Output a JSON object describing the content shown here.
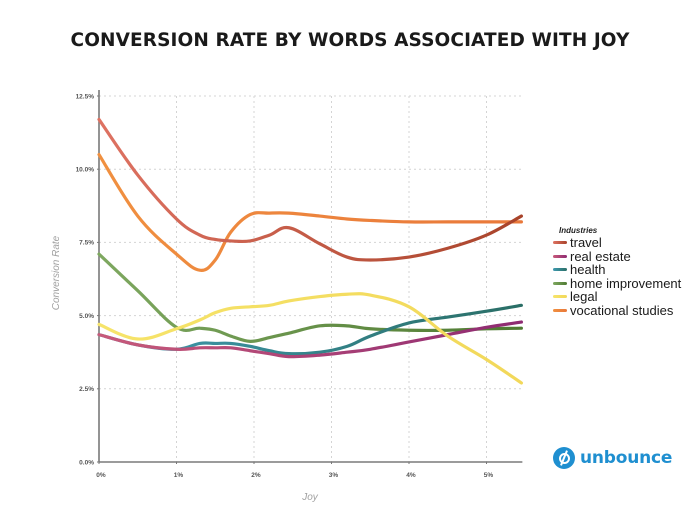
{
  "chart_data": {
    "type": "line",
    "title": "CONVERSION RATE BY WORDS ASSOCIATED WITH JOY",
    "xlabel": "Joy",
    "ylabel": "Conversion Rate",
    "xlim": [
      0,
      5.45
    ],
    "ylim": [
      0,
      12.5
    ],
    "x_ticks": [
      0,
      1,
      2,
      3,
      4,
      5
    ],
    "x_tick_labels": [
      "0%",
      "1%",
      "2%",
      "3%",
      "4%",
      "5%"
    ],
    "y_ticks": [
      0,
      2.5,
      5,
      7.5,
      10,
      12.5
    ],
    "y_tick_labels": [
      "0.0%",
      "2.5%",
      "5.0%",
      "7.5%",
      "10.0%",
      "12.5%"
    ],
    "grid": true,
    "legend": {
      "title": "Industries",
      "position": "right"
    },
    "x": [
      0,
      0.5,
      1,
      1.3,
      1.5,
      1.7,
      1.95,
      2.2,
      2.45,
      2.85,
      3.2,
      3.5,
      4,
      4.5,
      5,
      5.45
    ],
    "series": [
      {
        "name": "travel",
        "color": "#a8432a",
        "color_start": "#de7262",
        "values": [
          11.7,
          9.8,
          8.3,
          7.75,
          7.6,
          7.55,
          7.55,
          7.75,
          8.0,
          7.45,
          7.0,
          6.9,
          7.0,
          7.3,
          7.75,
          8.4
        ]
      },
      {
        "name": "real estate",
        "color": "#8e2a72",
        "color_start": "#c85a7a",
        "values": [
          4.35,
          4.0,
          3.85,
          3.9,
          3.9,
          3.9,
          3.8,
          3.7,
          3.6,
          3.65,
          3.75,
          3.85,
          4.1,
          4.35,
          4.6,
          4.78
        ]
      },
      {
        "name": "health",
        "color": "#2a6e66",
        "color_start": "#3f9ab0",
        "values": [
          4.35,
          4.0,
          3.85,
          4.05,
          4.05,
          4.05,
          3.95,
          3.8,
          3.7,
          3.75,
          3.95,
          4.3,
          4.75,
          4.95,
          5.15,
          5.35
        ]
      },
      {
        "name": "home improvement",
        "color": "#4f7a32",
        "color_start": "#7ea860",
        "values": [
          7.1,
          5.85,
          4.6,
          4.57,
          4.5,
          4.3,
          4.12,
          4.25,
          4.4,
          4.65,
          4.65,
          4.55,
          4.5,
          4.5,
          4.55,
          4.57
        ]
      },
      {
        "name": "legal",
        "color": "#f2d85a",
        "color_start": "#f6e46a",
        "values": [
          4.7,
          4.2,
          4.55,
          4.85,
          5.1,
          5.25,
          5.3,
          5.35,
          5.5,
          5.65,
          5.73,
          5.7,
          5.3,
          4.3,
          3.5,
          2.7
        ]
      },
      {
        "name": "vocational studies",
        "color": "#e9783a",
        "color_start": "#f09040",
        "values": [
          10.5,
          8.4,
          7.1,
          6.55,
          6.9,
          7.85,
          8.45,
          8.5,
          8.5,
          8.4,
          8.3,
          8.25,
          8.2,
          8.2,
          8.2,
          8.2
        ]
      }
    ]
  },
  "legend_title": "Industries",
  "legend_items": [
    "travel",
    "real estate",
    "health",
    "home improvement",
    "legal",
    "vocational studies"
  ],
  "logo": {
    "text": "unbounce",
    "color": "#1f8fd0"
  }
}
